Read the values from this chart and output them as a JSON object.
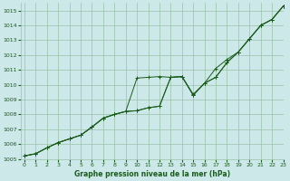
{
  "xlabel": "Graphe pression niveau de la mer (hPa)",
  "ylim": [
    1005.0,
    1015.5
  ],
  "xlim": [
    -0.3,
    23
  ],
  "yticks": [
    1005,
    1006,
    1007,
    1008,
    1009,
    1010,
    1011,
    1012,
    1013,
    1014,
    1015
  ],
  "xticks": [
    0,
    1,
    2,
    3,
    4,
    5,
    6,
    7,
    8,
    9,
    10,
    11,
    12,
    13,
    14,
    15,
    16,
    17,
    18,
    19,
    20,
    21,
    22,
    23
  ],
  "bg_color": "#cce8e8",
  "grid_color": "#99c4a8",
  "line_color": "#1a5c1a",
  "line1_y": [
    1005.2,
    1005.35,
    1005.75,
    1006.1,
    1006.35,
    1006.6,
    1007.15,
    1007.75,
    1008.0,
    1008.2,
    1008.25,
    1008.45,
    1008.55,
    1010.5,
    1010.55,
    1009.3,
    1010.1,
    1010.5,
    1011.5,
    1012.2,
    1013.1,
    1014.0,
    1014.4,
    1015.3
  ],
  "line2_y": [
    1005.2,
    1005.35,
    1005.75,
    1006.1,
    1006.35,
    1006.6,
    1007.15,
    1007.75,
    1008.0,
    1008.2,
    1010.45,
    1010.5,
    1010.55,
    1010.5,
    1010.55,
    1009.35,
    1010.1,
    1010.5,
    1011.5,
    1012.2,
    1013.1,
    1014.0,
    1014.4,
    1015.3
  ],
  "line3_y": [
    1005.2,
    1005.35,
    1005.75,
    1006.1,
    1006.35,
    1006.6,
    1007.15,
    1007.75,
    1008.0,
    1008.2,
    1008.25,
    1008.45,
    1008.55,
    1010.5,
    1010.55,
    1009.3,
    1010.1,
    1011.1,
    1011.7,
    1012.2,
    1013.1,
    1014.0,
    1014.4,
    1015.3
  ]
}
